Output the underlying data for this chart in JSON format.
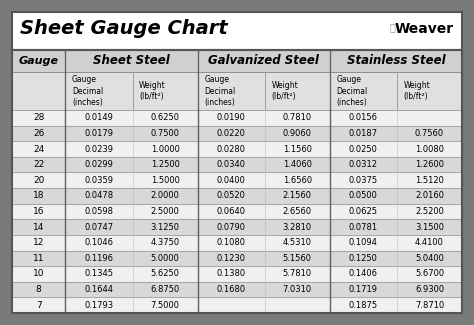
{
  "title": "Sheet Gauge Chart",
  "bg_outer": "#7a7a7a",
  "bg_white": "#ffffff",
  "header_row_bg": "#d0d0d0",
  "sub_header_bg": "#e0e0e0",
  "row_light": "#f0f0f0",
  "row_dark": "#d8d8d8",
  "border_color": "#888888",
  "gauges": [
    28,
    26,
    24,
    22,
    20,
    18,
    16,
    14,
    12,
    11,
    10,
    8,
    7
  ],
  "sheet_steel_decimal": [
    "0.0149",
    "0.0179",
    "0.0239",
    "0.0299",
    "0.0359",
    "0.0478",
    "0.0598",
    "0.0747",
    "0.1046",
    "0.1196",
    "0.1345",
    "0.1644",
    "0.1793"
  ],
  "sheet_steel_weight": [
    "0.6250",
    "0.7500",
    "1.0000",
    "1.2500",
    "1.5000",
    "2.0000",
    "2.5000",
    "3.1250",
    "4.3750",
    "5.0000",
    "5.6250",
    "6.8750",
    "7.5000"
  ],
  "galv_steel_decimal": [
    "0.0190",
    "0.0220",
    "0.0280",
    "0.0340",
    "0.0400",
    "0.0520",
    "0.0640",
    "0.0790",
    "0.1080",
    "0.1230",
    "0.1380",
    "0.1680",
    ""
  ],
  "galv_steel_weight": [
    "0.7810",
    "0.9060",
    "1.1560",
    "1.4060",
    "1.6560",
    "2.1560",
    "2.6560",
    "3.2810",
    "4.5310",
    "5.1560",
    "5.7810",
    "7.0310",
    ""
  ],
  "stainless_decimal": [
    "0.0156",
    "0.0187",
    "0.0250",
    "0.0312",
    "0.0375",
    "0.0500",
    "0.0625",
    "0.0781",
    "0.1094",
    "0.1250",
    "0.1406",
    "0.1719",
    "0.1875"
  ],
  "stainless_weight": [
    "",
    "0.7560",
    "1.0080",
    "1.2600",
    "1.5120",
    "2.0160",
    "2.5200",
    "3.1500",
    "4.4100",
    "5.0400",
    "5.6700",
    "6.9300",
    "7.8710"
  ]
}
